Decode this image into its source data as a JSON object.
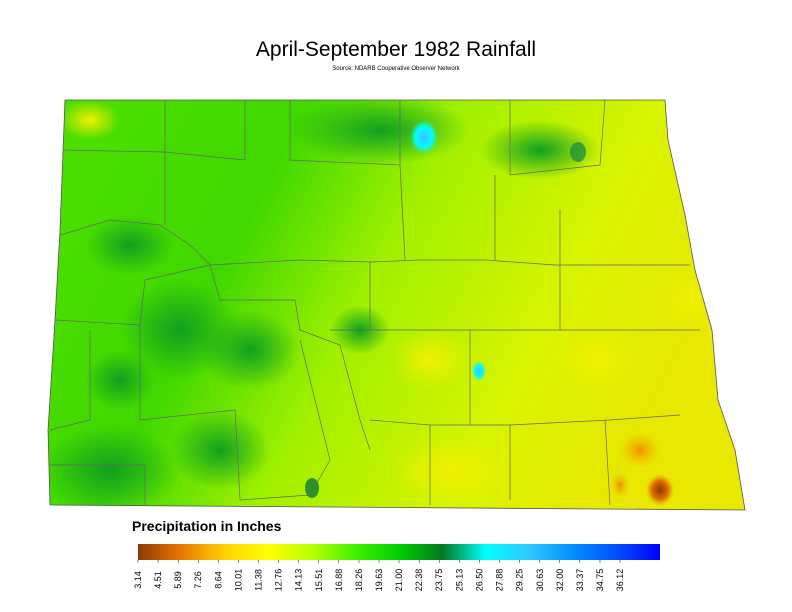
{
  "title": "April-September 1982 Rainfall",
  "source": "Source: NDARB Cooperative Observer Network",
  "legend": {
    "title": "Precipitation in Inches",
    "colors": [
      "#8a3a00",
      "#e87800",
      "#ffd200",
      "#ffff00",
      "#b8ff00",
      "#40f000",
      "#00d000",
      "#007a20",
      "#00ffff",
      "#30c8ff",
      "#0090ff",
      "#0050ff",
      "#0000ff"
    ],
    "ticks": [
      3.14,
      4.51,
      5.89,
      7.26,
      8.64,
      10.01,
      11.38,
      12.76,
      14.13,
      15.51,
      16.88,
      18.26,
      19.63,
      {
        "value": 21,
        "label": "21.00"
      },
      22.38,
      23.75,
      25.13,
      {
        "value": 26.5,
        "label": "26.50"
      },
      27.88,
      29.25,
      30.63,
      {
        "value": 32,
        "label": "32.00"
      },
      33.37,
      34.75,
      36.12
    ]
  }
}
